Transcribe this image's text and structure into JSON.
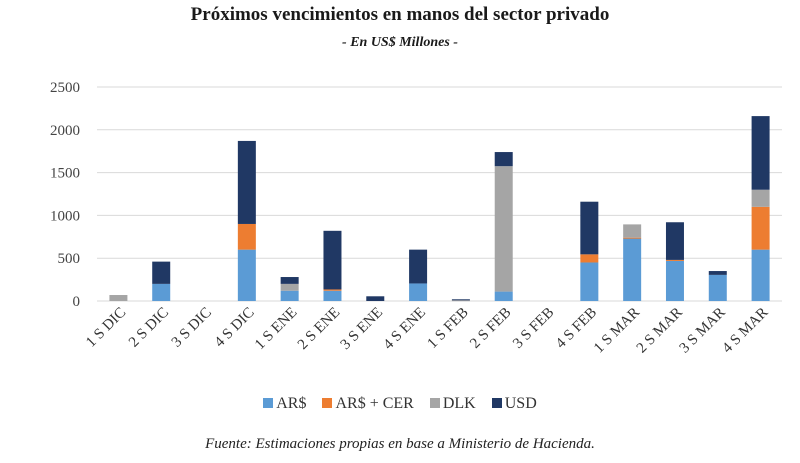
{
  "chart_data": {
    "type": "bar",
    "stacked": true,
    "title": "Próximos vencimientos en manos del sector privado",
    "subtitle": "- En US$ Millones -",
    "xlabel": "",
    "ylabel": "",
    "ylim": [
      0,
      2500
    ],
    "yticks": [
      0,
      500,
      1000,
      1500,
      2000,
      2500
    ],
    "ytick_labels": [
      "0",
      "500",
      "1000",
      "1500",
      "2000",
      "2500"
    ],
    "grid": true,
    "legend_position": "bottom",
    "categories": [
      "1 S DIC",
      "2 S DIC",
      "3 S DIC",
      "4 S DIC",
      "1 S ENE",
      "2 S ENE",
      "3 S ENE",
      "4 S ENE",
      "1 S FEB",
      "2 S FEB",
      "3 S FEB",
      "4 S FEB",
      "1 S MAR",
      "2 S MAR",
      "3 S MAR",
      "4 S MAR"
    ],
    "series": [
      {
        "name": "AR$",
        "color": "#5B9BD5",
        "values": [
          0,
          200,
          0,
          600,
          120,
          120,
          0,
          205,
          0,
          110,
          0,
          450,
          730,
          470,
          305,
          600
        ]
      },
      {
        "name": "AR$ + CER",
        "color": "#ED7D31",
        "values": [
          0,
          0,
          0,
          300,
          0,
          15,
          0,
          0,
          0,
          0,
          0,
          95,
          10,
          10,
          0,
          500
        ]
      },
      {
        "name": "DLK",
        "color": "#A5A5A5",
        "values": [
          70,
          0,
          0,
          0,
          80,
          0,
          0,
          0,
          10,
          1465,
          0,
          0,
          155,
          0,
          0,
          200
        ]
      },
      {
        "name": "USD",
        "color": "#203864",
        "values": [
          0,
          260,
          0,
          970,
          80,
          685,
          55,
          395,
          10,
          165,
          0,
          615,
          0,
          440,
          45,
          860
        ]
      }
    ],
    "source": "Fuente: Estimaciones propias en base a Ministerio de Hacienda."
  }
}
